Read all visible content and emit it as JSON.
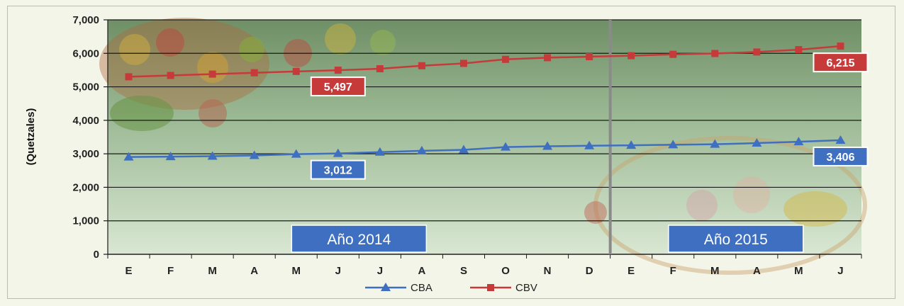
{
  "chart_data": {
    "type": "line",
    "categories": [
      "E",
      "F",
      "M",
      "A",
      "M",
      "J",
      "J",
      "A",
      "S",
      "O",
      "N",
      "D",
      "E",
      "F",
      "M",
      "A",
      "M",
      "J"
    ],
    "ylabel": "(Quetzales)",
    "ylim": [
      0,
      7000
    ],
    "yticks": [
      "0",
      "1,000",
      "2,000",
      "3,000",
      "4,000",
      "5,000",
      "6,000",
      "7,000"
    ],
    "grid": true,
    "legend_position": "bottom",
    "series": [
      {
        "name": "CBA",
        "color": "#3f6fc0",
        "marker": "triangle",
        "values": [
          2905,
          2915,
          2930,
          2950,
          2990,
          3012,
          3050,
          3090,
          3120,
          3200,
          3225,
          3240,
          3255,
          3270,
          3285,
          3320,
          3360,
          3406
        ]
      },
      {
        "name": "CBV",
        "color": "#c63a3a",
        "marker": "square",
        "values": [
          5300,
          5340,
          5380,
          5420,
          5460,
          5497,
          5540,
          5630,
          5700,
          5820,
          5870,
          5900,
          5930,
          5970,
          5995,
          6040,
          6110,
          6215
        ]
      }
    ],
    "data_labels": [
      {
        "series": 0,
        "index": 5,
        "text": "3,012"
      },
      {
        "series": 0,
        "index": 17,
        "text": "3,406"
      },
      {
        "series": 1,
        "index": 5,
        "text": "5,497"
      },
      {
        "series": 1,
        "index": 17,
        "text": "6,215"
      }
    ],
    "period_labels": [
      {
        "text": "Año 2014",
        "from_index": 0,
        "to_index": 11
      },
      {
        "text": "Año 2015",
        "from_index": 12,
        "to_index": 17
      }
    ],
    "divider_after_index": 11
  }
}
